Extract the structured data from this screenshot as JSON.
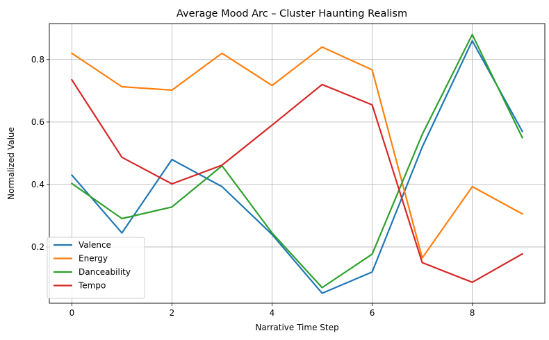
{
  "chart_data": {
    "type": "line",
    "title": "Average Mood Arc – Cluster Haunting Realism",
    "xlabel": "Narrative Time Step",
    "ylabel": "Normalized Value",
    "x": [
      0,
      1,
      2,
      3,
      4,
      5,
      6,
      7,
      8,
      9
    ],
    "xlim": [
      -0.45,
      9.45
    ],
    "ylim": [
      0.02,
      0.915
    ],
    "xticks": [
      0,
      2,
      4,
      6,
      8
    ],
    "yticks": [
      0.2,
      0.4,
      0.6,
      0.8
    ],
    "grid": true,
    "legend_position": "lower-left",
    "series": [
      {
        "name": "Valence",
        "color": "#1f77b4",
        "values": [
          0.43,
          0.245,
          0.48,
          0.393,
          0.24,
          0.052,
          0.12,
          0.52,
          0.86,
          0.57
        ]
      },
      {
        "name": "Energy",
        "color": "#ff7f0e",
        "values": [
          0.82,
          0.713,
          0.702,
          0.82,
          0.717,
          0.84,
          0.767,
          0.165,
          0.393,
          0.306
        ]
      },
      {
        "name": "Danceability",
        "color": "#2ca02c",
        "values": [
          0.403,
          0.291,
          0.328,
          0.46,
          0.245,
          0.07,
          0.177,
          0.56,
          0.88,
          0.55
        ]
      },
      {
        "name": "Tempo",
        "color": "#d62728",
        "values": [
          0.735,
          0.487,
          0.402,
          0.462,
          0.59,
          0.72,
          0.655,
          0.15,
          0.087,
          0.178
        ]
      }
    ]
  }
}
